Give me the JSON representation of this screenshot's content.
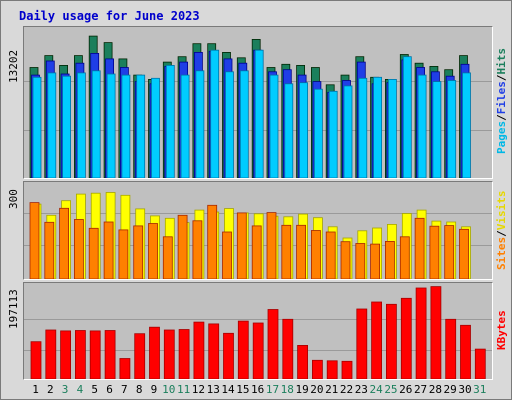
{
  "title": "Daily usage for June 2023",
  "colors": {
    "hits": "#1b7f5c",
    "files": "#1f3ee6",
    "pages": "#00ccff",
    "visits": "#ffff00",
    "sites": "#ff8000",
    "kbytes": "#ff0000",
    "weekend_day": "#1b7f5c",
    "weekday": "#000000"
  },
  "panels": {
    "top": {
      "ymax_label": "13202",
      "label_hits": "Hits",
      "label_sep1": "/",
      "label_files": "Files",
      "label_sep2": "/",
      "label_pages": "Pages"
    },
    "middle": {
      "ymax_label": "300",
      "label_visits": "Visits",
      "label_sep": "/",
      "label_sites": "Sites"
    },
    "bottom": {
      "ymax_label": "197113",
      "label_kbytes": "KBytes"
    }
  },
  "chart_data": {
    "type": "bar",
    "categories": [
      "1",
      "2",
      "3",
      "4",
      "5",
      "6",
      "7",
      "8",
      "9",
      "10",
      "11",
      "12",
      "13",
      "14",
      "15",
      "16",
      "17",
      "18",
      "19",
      "20",
      "21",
      "22",
      "23",
      "24",
      "25",
      "26",
      "27",
      "28",
      "29",
      "30",
      "31"
    ],
    "weekend_days": [
      3,
      4,
      10,
      11,
      17,
      18,
      24,
      25,
      31
    ],
    "series": [
      {
        "name": "Hits",
        "panel": "top",
        "ymax": 13202,
        "values": [
          10200,
          11300,
          10400,
          11300,
          13100,
          12500,
          11000,
          9500,
          9100,
          10700,
          11200,
          12400,
          12400,
          11600,
          11100,
          12800,
          10200,
          10500,
          10400,
          10200,
          8600,
          9500,
          11200,
          9300,
          9100,
          11400,
          10600,
          10300,
          10000,
          11300,
          null
        ]
      },
      {
        "name": "Files",
        "panel": "top",
        "ymax": 13202,
        "values": [
          9500,
          10800,
          9600,
          10600,
          11500,
          11000,
          10200,
          8900,
          8700,
          10300,
          10700,
          11600,
          11700,
          11000,
          10600,
          11800,
          9800,
          10000,
          9500,
          8900,
          7900,
          9000,
          10700,
          8700,
          8800,
          10900,
          10200,
          9800,
          9400,
          10500,
          null
        ]
      },
      {
        "name": "Pages",
        "panel": "top",
        "ymax": 13202,
        "values": [
          9300,
          9700,
          9400,
          9700,
          9900,
          9600,
          9500,
          9500,
          9200,
          10400,
          9500,
          9900,
          11800,
          9800,
          9900,
          11800,
          9500,
          8700,
          8800,
          8200,
          8000,
          8500,
          9200,
          9300,
          9100,
          11200,
          9500,
          8900,
          9000,
          9700,
          null
        ]
      },
      {
        "name": "Visits",
        "panel": "middle",
        "ymax": 300,
        "values": [
          247,
          210,
          258,
          280,
          283,
          285,
          276,
          231,
          208,
          200,
          186,
          227,
          221,
          232,
          218,
          215,
          207,
          205,
          214,
          202,
          172,
          135,
          159,
          168,
          180,
          216,
          227,
          191,
          188,
          172,
          null
        ]
      },
      {
        "name": "Sites",
        "panel": "middle",
        "ymax": 300,
        "values": [
          252,
          187,
          233,
          196,
          167,
          188,
          162,
          175,
          183,
          139,
          210,
          192,
          243,
          155,
          218,
          175,
          219,
          177,
          177,
          160,
          155,
          123,
          117,
          115,
          124,
          139,
          200,
          174,
          176,
          164,
          null
        ]
      },
      {
        "name": "KBytes",
        "panel": "bottom",
        "ymax": 197113,
        "values": [
          80000,
          105000,
          103000,
          104000,
          103000,
          104000,
          44000,
          97000,
          111000,
          105000,
          106000,
          122000,
          118000,
          98000,
          124000,
          120000,
          149000,
          128000,
          72000,
          40000,
          39000,
          38000,
          150000,
          165000,
          160000,
          173000,
          195000,
          198000,
          128000,
          115000,
          64000
        ]
      }
    ]
  },
  "x_labels": [
    "1",
    "2",
    "3",
    "4",
    "5",
    "6",
    "7",
    "8",
    "9",
    "10",
    "11",
    "12",
    "13",
    "14",
    "15",
    "16",
    "17",
    "18",
    "19",
    "20",
    "21",
    "22",
    "23",
    "24",
    "25",
    "26",
    "27",
    "28",
    "29",
    "30",
    "31"
  ]
}
